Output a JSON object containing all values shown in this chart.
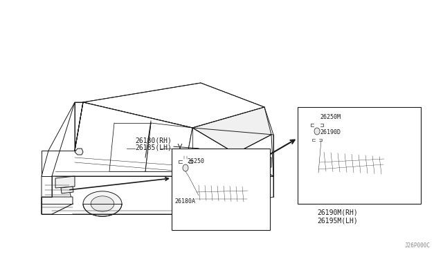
{
  "background_color": "#ffffff",
  "fig_width": 6.4,
  "fig_height": 3.72,
  "dpi": 100,
  "diagram_code": "J26P000C",
  "labels": {
    "front_lamp_rh": "26180(RH)",
    "front_lamp_lh": "26185(LH)",
    "front_bulb": "26250",
    "front_socket": "26180A",
    "rear_lamp_rh": "26190M(RH)",
    "rear_lamp_lh": "26195M(LH)",
    "rear_bulb": "26250M",
    "rear_socket": "26190D"
  },
  "line_color": "#1a1a1a",
  "text_color": "#1a1a1a",
  "font_size": 7.0,
  "small_font_size": 6.0
}
